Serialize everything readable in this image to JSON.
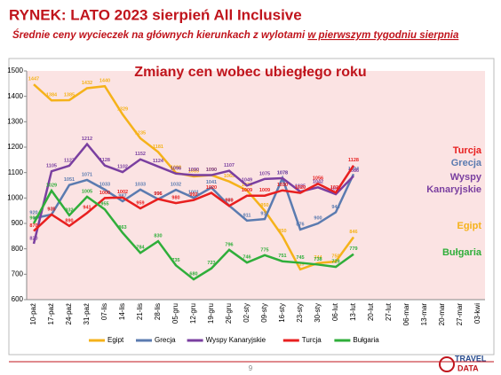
{
  "header": {
    "title": "RYNEK: LATO 2023 sierpień All Inclusive",
    "subtitle": "Średnie ceny wycieczek na głównych kierunkach z wylotami ",
    "subtitle_underlined": "w pierwszym tygodniu sierpnia"
  },
  "chart_data": {
    "type": "line",
    "title": "Zmiany cen wobec ubiegłego roku",
    "categories": [
      "10-paź",
      "17-paź",
      "24-paź",
      "31-paź",
      "07-lis",
      "14-lis",
      "21-lis",
      "28-lis",
      "05-gru",
      "12-gru",
      "19-gru",
      "26-gru",
      "02-sty",
      "09-sty",
      "16-sty",
      "23-sty",
      "30-sty",
      "06-lut",
      "13-lut",
      "20-lut",
      "27-lut",
      "06-mar",
      "13-mar",
      "20-mar",
      "27-mar",
      "03-kwi"
    ],
    "series": [
      {
        "name": "Egipt",
        "color": "#f5b21a",
        "values": [
          1447,
          1384,
          1385,
          1432,
          1440,
          1329,
          1235,
          1181,
          1099,
          1085,
          1090,
          1065,
          1030,
          950,
          850,
          719,
          744,
          750,
          846,
          null,
          null,
          null,
          null,
          null,
          null,
          null
        ]
      },
      {
        "name": "Grecja",
        "color": "#5b7bb0",
        "values": [
          920,
          935,
          1051,
          1071,
          1033,
          987,
          1033,
          995,
          1032,
          1001,
          1041,
          970,
          911,
          917,
          1078,
          876,
          900,
          944,
          1094,
          null,
          null,
          null,
          null,
          null,
          null,
          null
        ]
      },
      {
        "name": "Wyspy Kanaryjskie",
        "color": "#7a3fa0",
        "values": [
          820,
          1105,
          1127,
          1212,
          1128,
          1102,
          1152,
          1124,
          1096,
          1090,
          1090,
          1107,
          1049,
          1075,
          1078,
          1025,
          1042,
          1015,
          1086,
          null,
          null,
          null,
          null,
          null,
          null,
          null
        ]
      },
      {
        "name": "Turcja",
        "color": "#e81f1f",
        "values": [
          870,
          935,
          890,
          941,
          1000,
          1002,
          959,
          996,
          980,
          992,
          1020,
          969,
          1009,
          1009,
          1030,
          1020,
          1056,
          1021,
          1128,
          null,
          null,
          null,
          null,
          null,
          null,
          null
        ]
      },
      {
        "name": "Bułgaria",
        "color": "#2fae3a",
        "values": [
          900,
          1029,
          932,
          1005,
          955,
          863,
          784,
          830,
          735,
          680,
          723,
          796,
          746,
          775,
          751,
          745,
          738,
          729,
          779,
          null,
          null,
          null,
          null,
          null,
          null,
          null
        ]
      }
    ],
    "ylim": [
      600,
      1500
    ],
    "yticks": [
      600,
      700,
      800,
      900,
      1000,
      1100,
      1200,
      1300,
      1400,
      1500
    ],
    "grid": false,
    "legend": "bottom"
  },
  "footer": {
    "page": "9",
    "logo_top": "TRAVEL",
    "logo_bottom": "DATA"
  }
}
